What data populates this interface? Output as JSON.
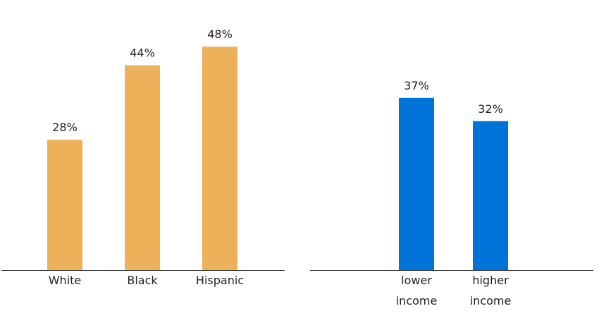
{
  "chart_data": [
    {
      "type": "bar",
      "categories": [
        "White",
        "Black",
        "Hispanic"
      ],
      "values": [
        28,
        44,
        48
      ],
      "value_labels": [
        "28%",
        "44%",
        "48%"
      ],
      "unit": "%",
      "color": "#ECB159",
      "title": "",
      "xlabel": "",
      "ylabel": "",
      "grid": false,
      "legend": "none"
    },
    {
      "type": "bar",
      "categories": [
        [
          "lower",
          "income"
        ],
        [
          "higher",
          "income"
        ]
      ],
      "values": [
        37,
        32
      ],
      "value_labels": [
        "37%",
        "32%"
      ],
      "unit": "%",
      "color": "#0073D9",
      "title": "",
      "xlabel": "",
      "ylabel": "",
      "grid": false,
      "legend": "none"
    }
  ]
}
